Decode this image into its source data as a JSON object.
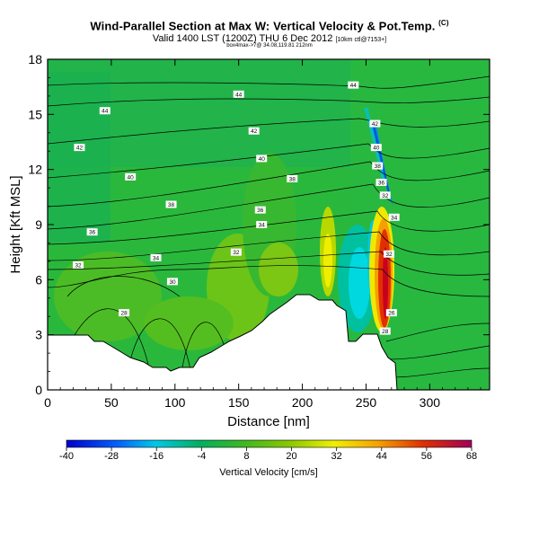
{
  "header": {
    "title": "Wind-Parallel Section at Max W: Vertical Velocity & Pot.Temp.",
    "title_mark": "(C)",
    "subtitle": "Valid 1400 LST (1200Z) THU 6 Dec 2012",
    "subtitle_small": "[10km ctl@7153+]",
    "tiny": "box4max->7@ 34.08,119.81 212nm"
  },
  "chart_data": {
    "type": "heatmap",
    "xlabel": "Distance [nm]",
    "ylabel": "Height [Kft MSL]",
    "xlim": [
      0,
      347
    ],
    "ylim": [
      0,
      18
    ],
    "x_ticks": [
      0,
      50,
      100,
      150,
      200,
      250,
      300
    ],
    "y_ticks": [
      0,
      3,
      6,
      9,
      12,
      15,
      18
    ],
    "colorbar": {
      "label": "Vertical Velocity [cm/s]",
      "ticks": [
        -40,
        -28,
        -16,
        -4,
        8,
        20,
        32,
        44,
        56,
        68
      ],
      "range": [
        -40,
        68
      ]
    },
    "contour_labels": [
      {
        "x": 45,
        "y": 15.2,
        "text": "44"
      },
      {
        "x": 150,
        "y": 16.1,
        "text": "44"
      },
      {
        "x": 240,
        "y": 16.6,
        "text": "44"
      },
      {
        "x": 25,
        "y": 13.2,
        "text": "42"
      },
      {
        "x": 162,
        "y": 14.1,
        "text": "42"
      },
      {
        "x": 257,
        "y": 14.5,
        "text": "42"
      },
      {
        "x": 168,
        "y": 12.6,
        "text": "40"
      },
      {
        "x": 258,
        "y": 13.2,
        "text": "40"
      },
      {
        "x": 65,
        "y": 11.6,
        "text": "40"
      },
      {
        "x": 259,
        "y": 12.2,
        "text": "38"
      },
      {
        "x": 192,
        "y": 11.5,
        "text": "38"
      },
      {
        "x": 262,
        "y": 11.3,
        "text": "36"
      },
      {
        "x": 97,
        "y": 10.1,
        "text": "38"
      },
      {
        "x": 167,
        "y": 9.8,
        "text": "36"
      },
      {
        "x": 265,
        "y": 10.6,
        "text": "32"
      },
      {
        "x": 168,
        "y": 9.0,
        "text": "34"
      },
      {
        "x": 272,
        "y": 9.4,
        "text": "34"
      },
      {
        "x": 35,
        "y": 8.6,
        "text": "36"
      },
      {
        "x": 148,
        "y": 7.5,
        "text": "32"
      },
      {
        "x": 85,
        "y": 7.2,
        "text": "34"
      },
      {
        "x": 24,
        "y": 6.8,
        "text": "32"
      },
      {
        "x": 268,
        "y": 7.4,
        "text": "32"
      },
      {
        "x": 98,
        "y": 5.9,
        "text": "30"
      },
      {
        "x": 60,
        "y": 4.2,
        "text": "28"
      },
      {
        "x": 270,
        "y": 4.2,
        "text": "26"
      },
      {
        "x": 265,
        "y": 3.2,
        "text": "28"
      }
    ]
  }
}
